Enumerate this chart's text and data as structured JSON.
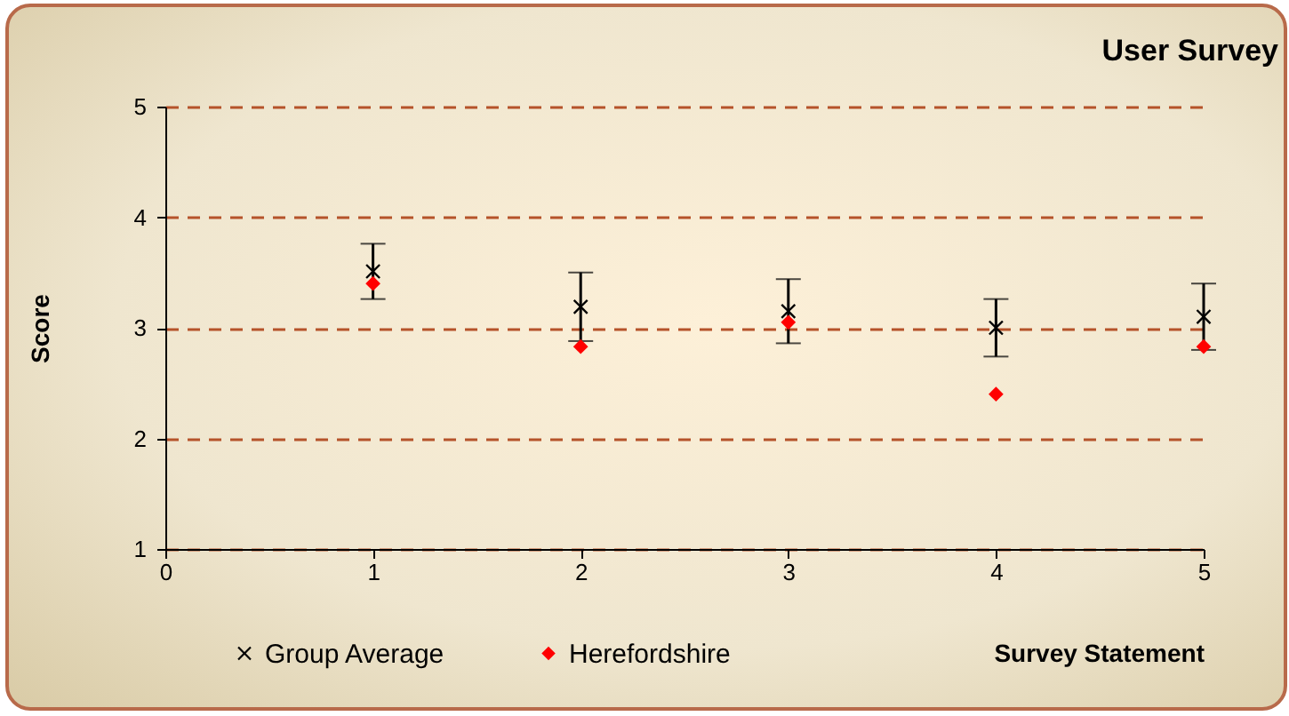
{
  "chart_data": {
    "type": "scatter",
    "title": "User Survey",
    "xlabel": "Survey Statement",
    "ylabel": "Score",
    "x": [
      1,
      2,
      3,
      4,
      5
    ],
    "series": [
      {
        "name": "Group Average",
        "color": "#000000",
        "marker": "cross",
        "values": [
          3.51,
          3.19,
          3.15,
          3.0,
          3.1
        ],
        "errors": [
          0.25,
          0.31,
          0.29,
          0.26,
          0.3
        ]
      },
      {
        "name": "Herefordshire",
        "color": "#ff0000",
        "marker": "diamond",
        "values": [
          3.4,
          2.83,
          3.05,
          2.4,
          2.83
        ]
      }
    ],
    "xlim": [
      0,
      5
    ],
    "xticks": [
      0,
      1,
      2,
      3,
      4,
      5
    ],
    "ylim": [
      1,
      5
    ],
    "yticks": [
      1,
      2,
      3,
      4,
      5
    ],
    "grid": "y",
    "legend": "bottom"
  }
}
